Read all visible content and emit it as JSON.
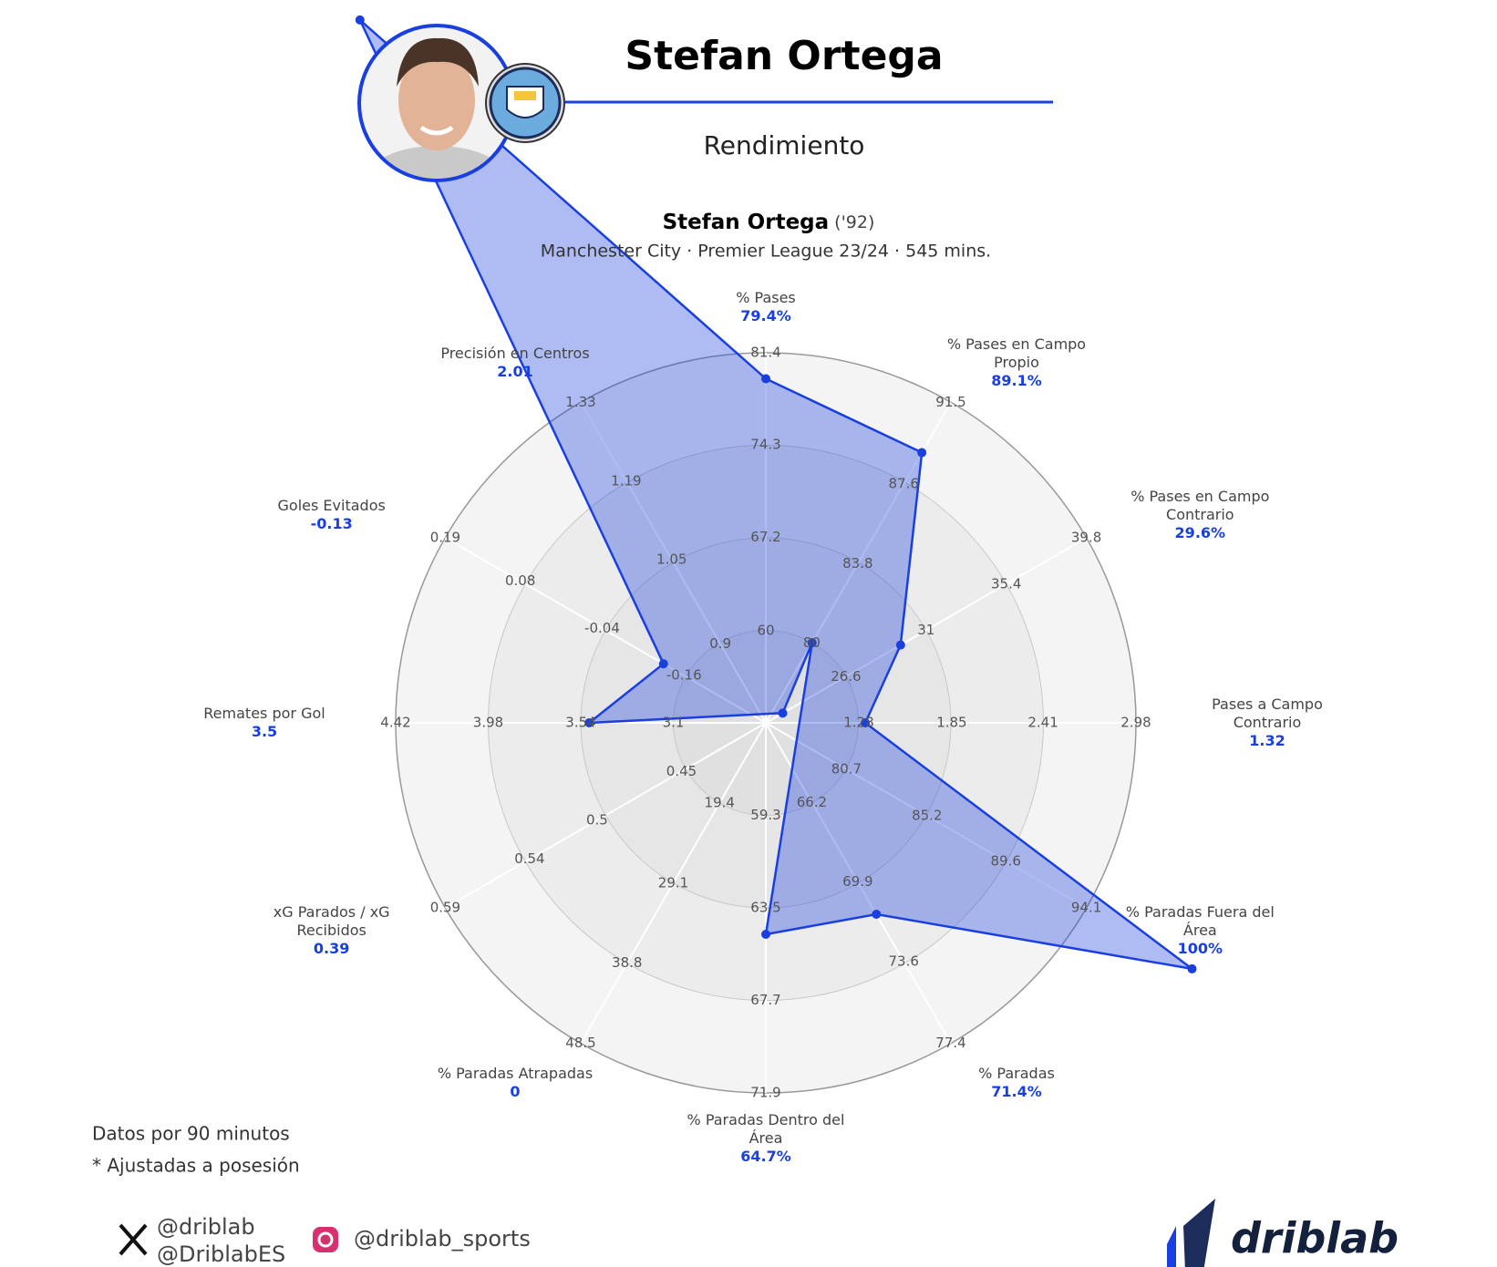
{
  "header": {
    "title": "Stefan Ortega",
    "subtitle": "Rendimiento"
  },
  "chart_data": {
    "type": "radar",
    "title": "Stefan Ortega",
    "title_note": "('92)",
    "subtitle": "Manchester City · Premier League 23/24 · 545 mins.",
    "categories": [
      "% Pases",
      "% Pases en Campo Propio",
      "% Pases en Campo Contrario",
      "Pases a Campo Contrario",
      "% Paradas Fuera del Área",
      "% Paradas",
      "% Paradas Dentro del Área",
      "% Paradas Atrapadas",
      "xG Parados / xG Recibidos",
      "Remates por Gol",
      "Goles Evitados",
      "Precisión en Centros"
    ],
    "values": [
      79.4,
      89.1,
      29.6,
      1.32,
      100,
      71.4,
      64.7,
      0,
      0.39,
      3.5,
      -0.13,
      2.01
    ],
    "value_labels": [
      "79.4%",
      "89.1%",
      "29.6%",
      "1.32",
      "100%",
      "71.4%",
      "64.7%",
      "0",
      "0.39",
      "3.5",
      "-0.13",
      "2.01"
    ],
    "rlims": [
      [
        52.9,
        81.4
      ],
      [
        76.2,
        91.5
      ],
      [
        22.2,
        39.8
      ],
      [
        0.71,
        2.98
      ],
      [
        76.2,
        94.1
      ],
      [
        62.5,
        77.4
      ],
      [
        55.1,
        71.9
      ],
      [
        9.7,
        48.5
      ],
      [
        0.4,
        0.59
      ],
      [
        2.66,
        4.42
      ],
      [
        -0.28,
        0.19
      ],
      [
        0.76,
        1.33
      ]
    ],
    "rticks": [
      [
        60,
        67.2,
        74.3,
        81.4
      ],
      [
        80,
        83.8,
        87.6,
        91.5
      ],
      [
        26.6,
        31,
        35.4,
        39.8
      ],
      [
        1.28,
        1.85,
        2.41,
        2.98
      ],
      [
        80.7,
        85.2,
        89.6,
        94.1
      ],
      [
        66.2,
        69.9,
        73.6,
        77.4
      ],
      [
        59.3,
        63.5,
        67.7,
        71.9
      ],
      [
        19.4,
        29.1,
        38.8,
        48.5
      ],
      [
        0.45,
        0.5,
        0.54,
        0.59
      ],
      [
        3.1,
        3.54,
        3.98,
        4.42
      ],
      [
        -0.16,
        -0.04,
        0.08,
        0.19
      ],
      [
        0.9,
        1.05,
        1.19,
        1.33
      ]
    ],
    "color": "#1a3fe0"
  },
  "notes": [
    "Datos por 90 minutos",
    "* Ajustadas a posesión"
  ],
  "footer": {
    "x_handles": [
      "@driblab",
      "@DriblabES"
    ],
    "instagram": "@driblab_sports",
    "logo": "driblab"
  }
}
